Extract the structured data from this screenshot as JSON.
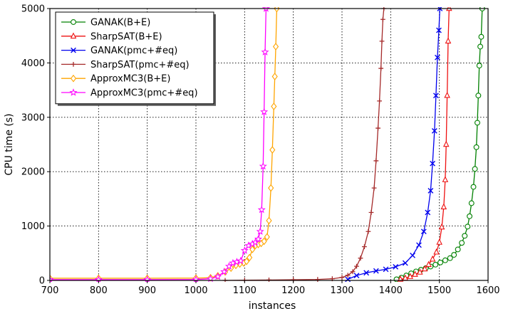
{
  "chart_data": {
    "type": "line",
    "xlabel": "instances",
    "ylabel": "CPU time (s)",
    "xlim": [
      700,
      1600
    ],
    "ylim": [
      0,
      5000
    ],
    "xticks": [
      700,
      800,
      900,
      1000,
      1100,
      1200,
      1300,
      1400,
      1500,
      1600
    ],
    "yticks": [
      0,
      1000,
      2000,
      3000,
      4000,
      5000
    ],
    "grid": true,
    "grid_style": "dotted",
    "legend_position": "top-left",
    "series": [
      {
        "name": "GANAK(B+E)",
        "color": "#008000",
        "marker": "circle",
        "x": [
          1412,
          1422,
          1432,
          1442,
          1452,
          1462,
          1472,
          1482,
          1492,
          1502,
          1512,
          1522,
          1530,
          1538,
          1546,
          1552,
          1558,
          1562,
          1566,
          1570,
          1573,
          1576,
          1578,
          1580,
          1582,
          1584,
          1586,
          1588
        ],
        "y": [
          20,
          50,
          90,
          130,
          165,
          195,
          225,
          255,
          290,
          330,
          370,
          410,
          470,
          570,
          690,
          820,
          990,
          1180,
          1420,
          1720,
          2050,
          2450,
          2900,
          3400,
          3950,
          4300,
          4480,
          5000
        ]
      },
      {
        "name": "SharpSAT(B+E)",
        "color": "#ee1111",
        "marker": "triangle",
        "x": [
          1420,
          1430,
          1440,
          1450,
          1460,
          1470,
          1478,
          1486,
          1494,
          1500,
          1505,
          1509,
          1512,
          1514,
          1516,
          1518,
          1520
        ],
        "y": [
          20,
          40,
          70,
          110,
          150,
          210,
          290,
          390,
          520,
          700,
          980,
          1350,
          1850,
          2500,
          3400,
          4400,
          5000
        ]
      },
      {
        "name": "GANAK(pmc+#eq)",
        "color": "#0000ee",
        "marker": "x",
        "x": [
          1312,
          1330,
          1350,
          1370,
          1390,
          1410,
          1430,
          1445,
          1458,
          1468,
          1476,
          1482,
          1486,
          1490,
          1493,
          1496,
          1499,
          1501
        ],
        "y": [
          20,
          90,
          140,
          175,
          205,
          250,
          320,
          460,
          650,
          900,
          1250,
          1650,
          2150,
          2750,
          3400,
          4100,
          4600,
          5000
        ]
      },
      {
        "name": "SharpSAT(pmc+#eq)",
        "color": "#a52a2a",
        "marker": "plus",
        "x": [
          1060,
          1100,
          1150,
          1200,
          1250,
          1280,
          1300,
          1312,
          1322,
          1330,
          1338,
          1346,
          1354,
          1360,
          1366,
          1370,
          1374,
          1377,
          1380,
          1382,
          1384,
          1386
        ],
        "y": [
          0,
          5,
          8,
          12,
          18,
          30,
          55,
          95,
          160,
          260,
          410,
          620,
          900,
          1250,
          1700,
          2200,
          2800,
          3300,
          3900,
          4400,
          4800,
          5000
        ]
      },
      {
        "name": "ApproxMC3(B+E)",
        "color": "#ffa500",
        "marker": "diamond",
        "x": [
          700,
          800,
          900,
          1000,
          1030,
          1045,
          1060,
          1072,
          1082,
          1090,
          1098,
          1104,
          1110,
          1116,
          1122,
          1128,
          1134,
          1140,
          1146,
          1150,
          1154,
          1157,
          1160,
          1162,
          1164,
          1166
        ],
        "y": [
          40,
          40,
          40,
          42,
          50,
          85,
          155,
          225,
          275,
          300,
          320,
          350,
          420,
          570,
          640,
          660,
          680,
          720,
          800,
          1100,
          1700,
          2400,
          3200,
          3750,
          4300,
          5000
        ]
      },
      {
        "name": "ApproxMC3(pmc+#eq)",
        "color": "#ff00ff",
        "marker": "star",
        "x": [
          700,
          800,
          900,
          1000,
          1030,
          1045,
          1058,
          1068,
          1076,
          1084,
          1092,
          1100,
          1108,
          1116,
          1122,
          1128,
          1132,
          1135,
          1138,
          1140,
          1142,
          1144
        ],
        "y": [
          15,
          15,
          15,
          17,
          30,
          70,
          160,
          260,
          320,
          340,
          360,
          550,
          640,
          670,
          700,
          760,
          900,
          1300,
          2100,
          3100,
          4200,
          5000
        ]
      }
    ]
  }
}
